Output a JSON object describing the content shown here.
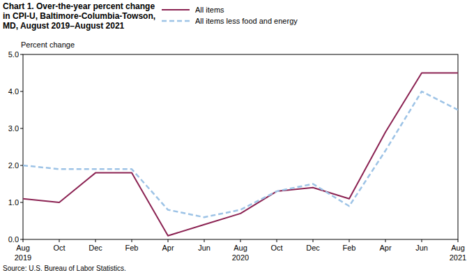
{
  "chart_data": {
    "type": "line",
    "title": "Chart 1. Over-the-year percent change in CPI-U, Baltimore-Columbia-Towson, MD, August 2019–August 2021",
    "y_label": "Percent change",
    "source": "Source: U.S. Bureau of Labor Statistics.",
    "categories": [
      "Aug 2019",
      "Oct",
      "Dec",
      "Feb",
      "Apr",
      "Jun",
      "Aug 2020",
      "Oct",
      "Dec",
      "Feb",
      "Apr",
      "Jun",
      "Aug 2021"
    ],
    "series": [
      {
        "name": "All items",
        "color": "#8b2252",
        "line_style": "solid",
        "values": [
          1.1,
          1.0,
          1.8,
          1.8,
          0.1,
          0.4,
          0.7,
          1.3,
          1.4,
          1.1,
          2.9,
          4.5,
          4.5
        ]
      },
      {
        "name": "All items less food and energy",
        "color": "#9dc3e6",
        "line_style": "dashed",
        "values": [
          2.0,
          1.9,
          1.9,
          1.9,
          0.8,
          0.6,
          0.8,
          1.3,
          1.5,
          0.9,
          2.4,
          4.0,
          3.5
        ]
      }
    ],
    "ylim": [
      0,
      5
    ],
    "yticks": [
      {
        "value": 0,
        "label": "0.0"
      },
      {
        "value": 1,
        "label": "1.0"
      },
      {
        "value": 2,
        "label": "2.0"
      },
      {
        "value": 3,
        "label": "3.0"
      },
      {
        "value": 4,
        "label": "4.0"
      },
      {
        "value": 5,
        "label": "5.0"
      }
    ],
    "grid": false,
    "legend": "top"
  }
}
